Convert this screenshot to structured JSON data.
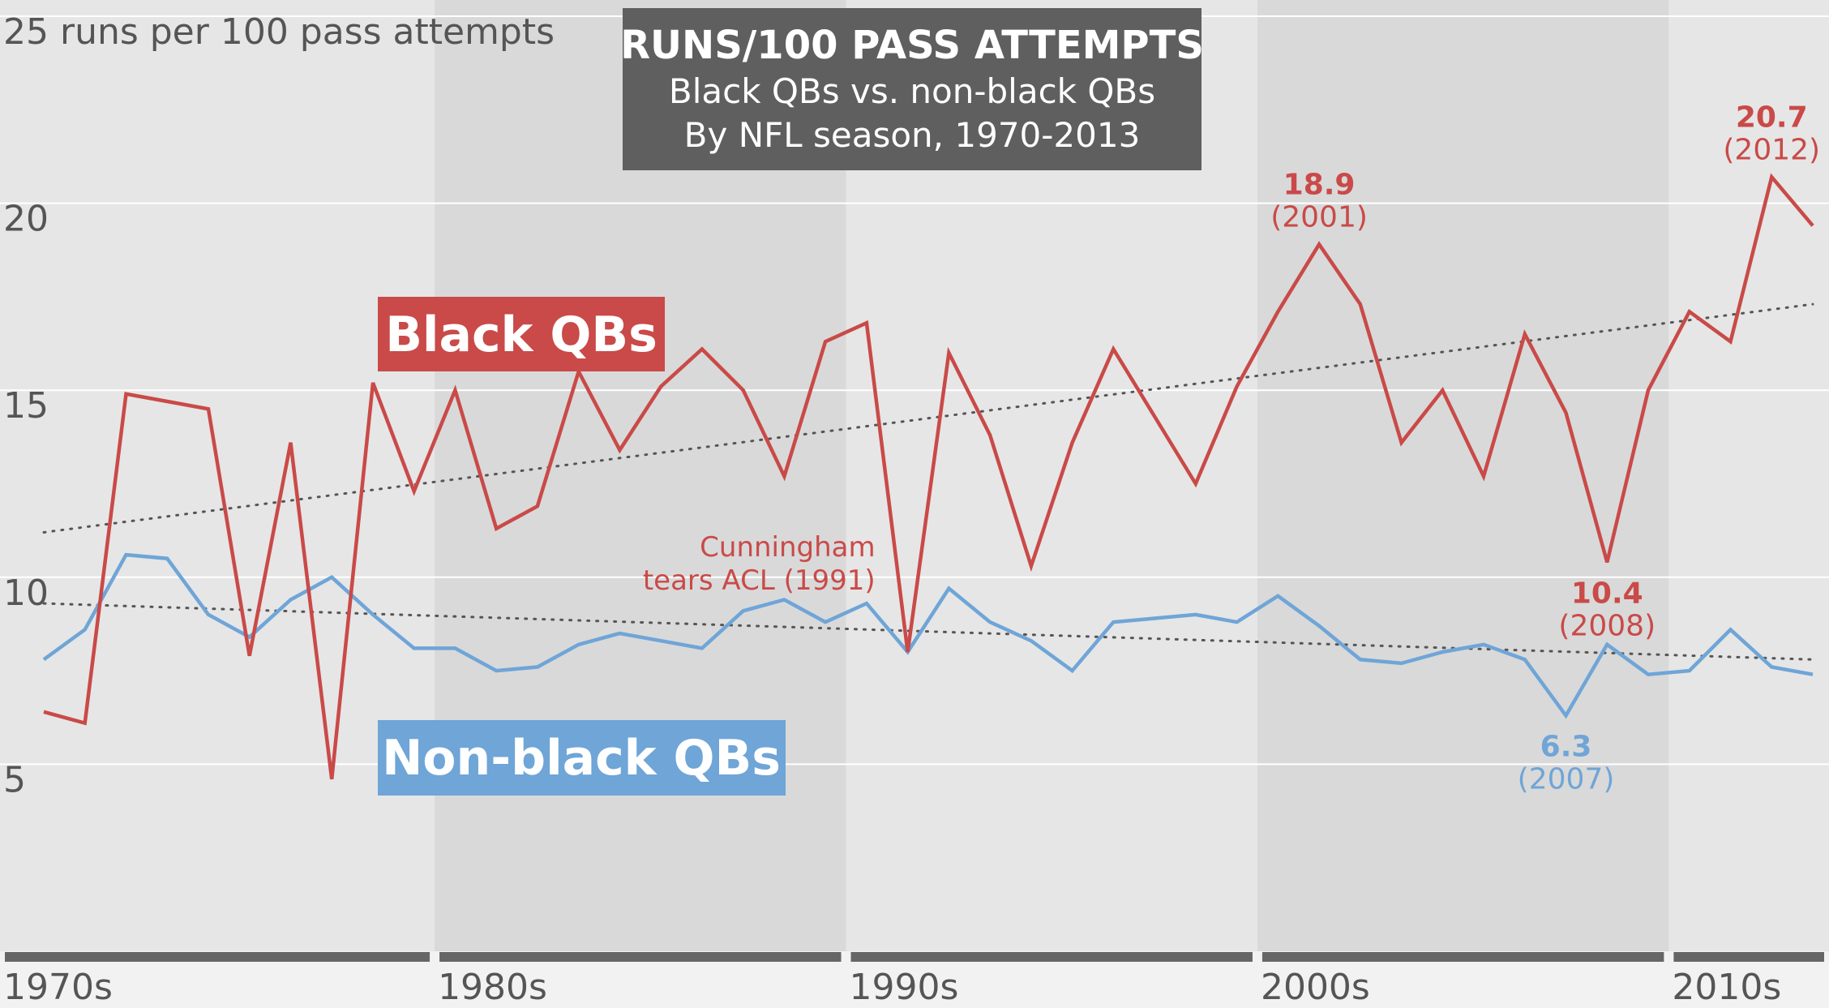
{
  "chart_data": {
    "type": "line",
    "title": "RUNS/100 PASS ATTEMPTS",
    "subtitle_lines": [
      "Black QBs vs. non-black QBs",
      "By NFL season, 1970-2013"
    ],
    "ylabel": "",
    "xlabel": "",
    "ylim": [
      0,
      25
    ],
    "xlim": [
      1970,
      2013
    ],
    "yticks": [
      {
        "value": 5,
        "label": "5"
      },
      {
        "value": 10,
        "label": "10"
      },
      {
        "value": 15,
        "label": "15"
      },
      {
        "value": 20,
        "label": "20"
      },
      {
        "value": 25,
        "label": "25 runs per 100 pass attempts"
      }
    ],
    "decades": [
      {
        "label": "1970s",
        "start": 1970,
        "end": 1979
      },
      {
        "label": "1980s",
        "start": 1980,
        "end": 1989
      },
      {
        "label": "1990s",
        "start": 1990,
        "end": 1999
      },
      {
        "label": "2000s",
        "start": 2000,
        "end": 2009
      },
      {
        "label": "2010s",
        "start": 2010,
        "end": 2013
      }
    ],
    "x": [
      1970,
      1971,
      1972,
      1973,
      1974,
      1975,
      1976,
      1977,
      1978,
      1979,
      1980,
      1981,
      1982,
      1983,
      1984,
      1985,
      1986,
      1987,
      1988,
      1989,
      1990,
      1991,
      1992,
      1993,
      1994,
      1995,
      1996,
      1997,
      1998,
      1999,
      2000,
      2001,
      2002,
      2003,
      2004,
      2005,
      2006,
      2007,
      2008,
      2009,
      2010,
      2011,
      2012,
      2013
    ],
    "series": [
      {
        "name": "Black QBs",
        "color": "#c94a48",
        "values": [
          6.4,
          6.1,
          14.9,
          14.7,
          14.5,
          7.9,
          13.6,
          4.6,
          15.2,
          12.3,
          15.0,
          11.3,
          11.9,
          15.5,
          13.4,
          15.1,
          16.1,
          15.0,
          12.7,
          16.3,
          16.8,
          8.0,
          16.0,
          13.8,
          10.3,
          13.6,
          16.1,
          14.3,
          12.5,
          15.1,
          17.1,
          18.9,
          17.3,
          13.6,
          15.0,
          12.7,
          16.5,
          14.4,
          10.4,
          15.0,
          17.1,
          16.3,
          20.7,
          19.4
        ]
      },
      {
        "name": "Non-black QBs",
        "color": "#6fa5d7",
        "values": [
          7.8,
          8.6,
          10.6,
          10.5,
          9.0,
          8.4,
          9.4,
          10.0,
          9.0,
          8.1,
          8.1,
          7.5,
          7.6,
          8.2,
          8.5,
          8.3,
          8.1,
          9.1,
          9.4,
          8.8,
          9.3,
          8.0,
          9.7,
          8.8,
          8.3,
          7.5,
          8.8,
          8.9,
          9.0,
          8.8,
          9.5,
          8.7,
          7.8,
          7.7,
          8.0,
          8.2,
          7.8,
          6.3,
          8.2,
          7.4,
          7.5,
          8.6,
          7.6,
          7.4
        ]
      }
    ],
    "trendlines": [
      {
        "series": "Black QBs",
        "start": [
          1970,
          11.2
        ],
        "end": [
          2013,
          17.3
        ]
      },
      {
        "series": "Non-black QBs",
        "start": [
          1970,
          9.3
        ],
        "end": [
          2013,
          7.8
        ]
      }
    ],
    "annotations": [
      {
        "series": "Black QBs",
        "x": 2001,
        "value": "18.9",
        "label": "(2001)"
      },
      {
        "series": "Black QBs",
        "x": 2012,
        "value": "20.7",
        "label": "(2012)"
      },
      {
        "series": "Black QBs",
        "x": 2008,
        "value": "10.4",
        "label": "(2008)"
      },
      {
        "series": "Non-black QBs",
        "x": 2007,
        "value": "6.3",
        "label": "(2007)"
      }
    ],
    "note": {
      "series": "Black QBs",
      "lines": [
        "Cunningham",
        "tears ACL (1991)"
      ]
    },
    "legend": [
      "Black QBs",
      "Non-black QBs"
    ]
  }
}
